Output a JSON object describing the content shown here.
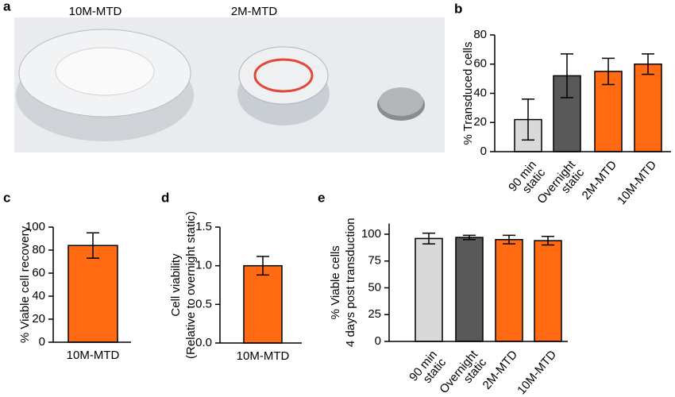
{
  "photo": {
    "panel": "a",
    "captions": [
      "10M-MTD",
      "2M-MTD"
    ]
  },
  "chart_data": [
    {
      "panel": "b",
      "type": "bar",
      "ylabel": [
        "% Transduced cells"
      ],
      "categories": [
        [
          "90 min",
          "static"
        ],
        [
          "Overnight",
          "static"
        ],
        [
          "2M-MTD"
        ],
        [
          "10M-MTD"
        ]
      ],
      "values": [
        22,
        52,
        55,
        60
      ],
      "errors": [
        14,
        15,
        9,
        7
      ],
      "colors": [
        "#d9d9d9",
        "#595959",
        "#ff6a13",
        "#ff6a13"
      ],
      "ylim": [
        0,
        80
      ],
      "yticks": [
        0,
        20,
        40,
        60,
        80
      ]
    },
    {
      "panel": "c",
      "type": "bar",
      "ylabel": [
        "% Viable cell recovery"
      ],
      "categories": [
        [
          "10M-MTD"
        ]
      ],
      "values": [
        84
      ],
      "errors": [
        11
      ],
      "colors": [
        "#ff6a13"
      ],
      "ylim": [
        0,
        100
      ],
      "yticks": [
        0,
        20,
        40,
        60,
        80,
        100
      ]
    },
    {
      "panel": "d",
      "type": "bar",
      "ylabel": [
        "Cell viability",
        "(Relative to overnight static)"
      ],
      "categories": [
        [
          "10M-MTD"
        ]
      ],
      "values": [
        1.0
      ],
      "errors": [
        0.12
      ],
      "colors": [
        "#ff6a13"
      ],
      "ylim": [
        0,
        1.5
      ],
      "yticks": [
        {
          "value": 0,
          "label": "0.0"
        },
        0.5,
        {
          "value": 1,
          "label": "1.0"
        },
        1.5
      ]
    },
    {
      "panel": "e",
      "type": "bar",
      "ylabel": [
        "% Viable cells",
        "4 days post transduction"
      ],
      "categories": [
        [
          "90 min",
          "static"
        ],
        [
          "Overnight",
          "static"
        ],
        [
          "2M-MTD"
        ],
        [
          "10M-MTD"
        ]
      ],
      "values": [
        96,
        97,
        95,
        94
      ],
      "errors": [
        5,
        2,
        4,
        4
      ],
      "colors": [
        "#d9d9d9",
        "#595959",
        "#ff6a13",
        "#ff6a13"
      ],
      "ylim": [
        0,
        110
      ],
      "yticks": [
        0,
        25,
        50,
        75,
        100
      ]
    }
  ]
}
